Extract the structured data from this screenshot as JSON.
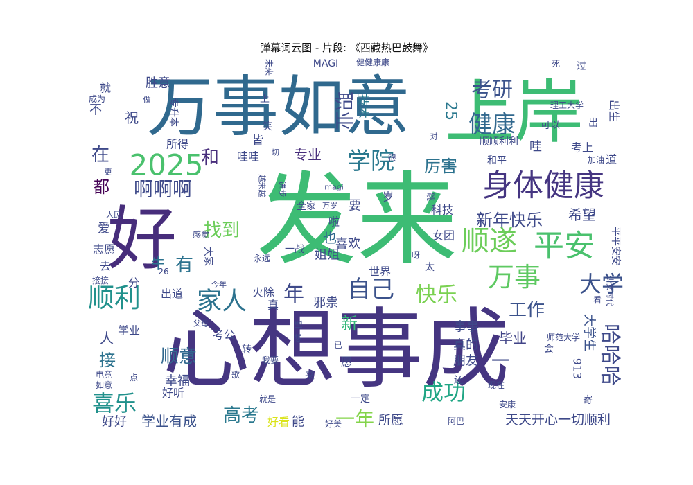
{
  "title": "弹幕词云图 - 片段: 《西藏热巴鼓舞》",
  "chart_data": {
    "type": "wordcloud",
    "palette": "viridis",
    "words": [
      {
        "text": "发来",
        "color": "#3dbc74"
      },
      {
        "text": "心想事成",
        "color": "#453581"
      },
      {
        "text": "万事如意",
        "color": "#30698e"
      },
      {
        "text": "上岸",
        "color": "#3dbc74"
      },
      {
        "text": "好",
        "color": "#472d7b"
      },
      {
        "text": "身体健康",
        "color": "#453581"
      },
      {
        "text": "2025",
        "color": "#4ac16d"
      },
      {
        "text": "平安",
        "color": "#4ac16d"
      },
      {
        "text": "顺遂",
        "color": "#6ccd5a"
      },
      {
        "text": "万事",
        "color": "#5ec962"
      },
      {
        "text": "学院",
        "color": "#2a788e"
      },
      {
        "text": "健康",
        "color": "#31688e"
      },
      {
        "text": "考研",
        "color": "#3b528b"
      },
      {
        "text": "自己",
        "color": "#3b528b"
      },
      {
        "text": "顺利",
        "color": "#21918c"
      },
      {
        "text": "家人",
        "color": "#2c728e"
      },
      {
        "text": "大学",
        "color": "#3b528b"
      },
      {
        "text": "快乐",
        "color": "#7ad151"
      },
      {
        "text": "新年快乐",
        "color": "#3e4989"
      },
      {
        "text": "啊啊啊",
        "color": "#3e4989"
      },
      {
        "text": "职业",
        "color": "#3e4989"
      },
      {
        "text": "找到",
        "color": "#6ccd5a"
      },
      {
        "text": "工作",
        "color": "#3b528b"
      },
      {
        "text": "哈哈哈",
        "color": "#3e4989"
      },
      {
        "text": "成功",
        "color": "#21a685"
      },
      {
        "text": "喜乐",
        "color": "#21918c"
      },
      {
        "text": "高考",
        "color": "#2a788e"
      },
      {
        "text": "顺意",
        "color": "#31688e"
      },
      {
        "text": "年",
        "color": "#3e4989"
      },
      {
        "text": "一年",
        "color": "#84d44b"
      },
      {
        "text": "胜意",
        "color": "#3e4989"
      },
      {
        "text": "学业有成",
        "color": "#3b528b"
      },
      {
        "text": "天天开心一切顺利",
        "color": "#3e4989"
      },
      {
        "text": "在",
        "color": "#3e4989"
      },
      {
        "text": "和",
        "color": "#472d7b"
      },
      {
        "text": "都",
        "color": "#440154"
      },
      {
        "text": "有",
        "color": "#2c728e"
      },
      {
        "text": "厉害",
        "color": "#2c728e"
      },
      {
        "text": "希望",
        "color": "#3e4989"
      },
      {
        "text": "技术",
        "color": "#2a788e"
      },
      {
        "text": "专业",
        "color": "#472d7b"
      },
      {
        "text": "接",
        "color": "#2c728e"
      },
      {
        "text": "牛",
        "color": "#2c728e"
      },
      {
        "text": "人",
        "color": "#3e4989"
      },
      {
        "text": "新",
        "color": "#35b779"
      },
      {
        "text": "毕业",
        "color": "#414487"
      },
      {
        "text": "大学生",
        "color": "#3b528b"
      },
      {
        "text": "25",
        "color": "#2a788e"
      },
      {
        "text": "喜欢",
        "color": "#3e4989"
      },
      {
        "text": "姐姐",
        "color": "#3e4989"
      },
      {
        "text": "也",
        "color": "#31688e"
      },
      {
        "text": "邪祟",
        "color": "#3e4989"
      },
      {
        "text": "所愿",
        "color": "#3e4989"
      },
      {
        "text": "事事",
        "color": "#3e4989"
      },
      {
        "text": "真的",
        "color": "#3e4989"
      },
      {
        "text": "朋友",
        "color": "#3e4989"
      },
      {
        "text": "幸福",
        "color": "#3e4989"
      },
      {
        "text": "好好",
        "color": "#3e4989"
      },
      {
        "text": "好看",
        "color": "#dae319"
      },
      {
        "text": "能",
        "color": "#3e4989"
      },
      {
        "text": "愿",
        "color": "#3e4989"
      },
      {
        "text": "来",
        "color": "#3e4989"
      },
      {
        "text": "一定",
        "color": "#3e4989"
      },
      {
        "text": "女团",
        "color": "#3e4989"
      },
      {
        "text": "科技",
        "color": "#3e4989"
      },
      {
        "text": "世界",
        "color": "#3e4989"
      },
      {
        "text": "出道",
        "color": "#3e4989"
      },
      {
        "text": "火除",
        "color": "#3e4989"
      },
      {
        "text": "真",
        "color": "#3e4989"
      },
      {
        "text": "考公",
        "color": "#3e4989"
      },
      {
        "text": "学业",
        "color": "#3e4989"
      },
      {
        "text": "转",
        "color": "#3e4989"
      },
      {
        "text": "好听",
        "color": "#3e4989"
      },
      {
        "text": "还",
        "color": "#3e4989"
      },
      {
        "text": "现在",
        "color": "#3e4989"
      },
      {
        "text": "安康",
        "color": "#3e4989"
      },
      {
        "text": "阿巴",
        "color": "#3e4989"
      },
      {
        "text": "好美",
        "color": "#3e4989"
      },
      {
        "text": "就是",
        "color": "#3e4989"
      },
      {
        "text": "歌",
        "color": "#3e4989"
      },
      {
        "text": "如意",
        "color": "#3e4989"
      },
      {
        "text": "电竞",
        "color": "#3e4989"
      },
      {
        "text": "点",
        "color": "#3e4989"
      },
      {
        "text": "我要",
        "color": "#3e4989"
      },
      {
        "text": "想",
        "color": "#3e4989"
      },
      {
        "text": "到",
        "color": "#3e4989"
      },
      {
        "text": "已",
        "color": "#3e4989"
      },
      {
        "text": "父母",
        "color": "#3e4989"
      },
      {
        "text": "今年",
        "color": "#3e4989"
      },
      {
        "text": "26",
        "color": "#3e4989"
      },
      {
        "text": "分",
        "color": "#3e4989"
      },
      {
        "text": "接接",
        "color": "#3e4989"
      },
      {
        "text": "去",
        "color": "#3e4989"
      },
      {
        "text": "志愿",
        "color": "#3e4989"
      },
      {
        "text": "爱",
        "color": "#3e4989"
      },
      {
        "text": "感觉",
        "color": "#3e4989"
      },
      {
        "text": "大家",
        "color": "#3e4989"
      },
      {
        "text": "永远",
        "color": "#3e4989"
      },
      {
        "text": "人民",
        "color": "#3e4989"
      },
      {
        "text": "一战",
        "color": "#3e4989"
      },
      {
        "text": "全家",
        "color": "#3e4989"
      },
      {
        "text": "啦",
        "color": "#3e4989"
      },
      {
        "text": "要",
        "color": "#3e4989"
      },
      {
        "text": "岁",
        "color": "#3e4989"
      },
      {
        "text": "跳",
        "color": "#3e4989"
      },
      {
        "text": "万岁",
        "color": "#3e4989"
      },
      {
        "text": "magi",
        "color": "#3e4989"
      },
      {
        "text": "进步",
        "color": "#3e4989"
      },
      {
        "text": "越来越",
        "color": "#3e4989"
      },
      {
        "text": "很",
        "color": "#3e4989"
      },
      {
        "text": "一切",
        "color": "#3e4989"
      },
      {
        "text": "哇哇",
        "color": "#3e4989"
      },
      {
        "text": "皆",
        "color": "#3e4989"
      },
      {
        "text": "所得",
        "color": "#3e4989"
      },
      {
        "text": "更",
        "color": "#3e4989"
      },
      {
        "text": "笑",
        "color": "#3e4989"
      },
      {
        "text": "专升本",
        "color": "#3e4989"
      },
      {
        "text": "上",
        "color": "#3e4989"
      },
      {
        "text": "祝",
        "color": "#3e4989"
      },
      {
        "text": "不",
        "color": "#3e4989"
      },
      {
        "text": "就",
        "color": "#3e4989"
      },
      {
        "text": "成为",
        "color": "#3e4989"
      },
      {
        "text": "做",
        "color": "#3e4989"
      },
      {
        "text": "MAGI",
        "color": "#3e4989"
      },
      {
        "text": "健健康康",
        "color": "#3e4989"
      },
      {
        "text": "未来",
        "color": "#3e4989"
      },
      {
        "text": "死",
        "color": "#3e4989"
      },
      {
        "text": "过",
        "color": "#3e4989"
      },
      {
        "text": "理工大学",
        "color": "#3e4989"
      },
      {
        "text": "出生",
        "color": "#3e4989"
      },
      {
        "text": "出",
        "color": "#3e4989"
      },
      {
        "text": "可以",
        "color": "#3e4989"
      },
      {
        "text": "顺顺利利",
        "color": "#3e4989"
      },
      {
        "text": "对",
        "color": "#3e4989"
      },
      {
        "text": "哇",
        "color": "#3e4989"
      },
      {
        "text": "考上",
        "color": "#3e4989"
      },
      {
        "text": "道",
        "color": "#3e4989"
      },
      {
        "text": "加油",
        "color": "#3e4989"
      },
      {
        "text": "和平",
        "color": "#3e4989"
      },
      {
        "text": "平平安安",
        "color": "#3e4989"
      },
      {
        "text": "呀",
        "color": "#3e4989"
      },
      {
        "text": "太",
        "color": "#3e4989"
      },
      {
        "text": "少女时代",
        "color": "#3e4989"
      },
      {
        "text": "看",
        "color": "#3e4989"
      },
      {
        "text": "师范大学",
        "color": "#3e4989"
      },
      {
        "text": "913",
        "color": "#3e4989"
      },
      {
        "text": "会",
        "color": "#3e4989"
      },
      {
        "text": "一",
        "color": "#3e4989"
      },
      {
        "text": "寄",
        "color": "#3e4989"
      }
    ]
  }
}
